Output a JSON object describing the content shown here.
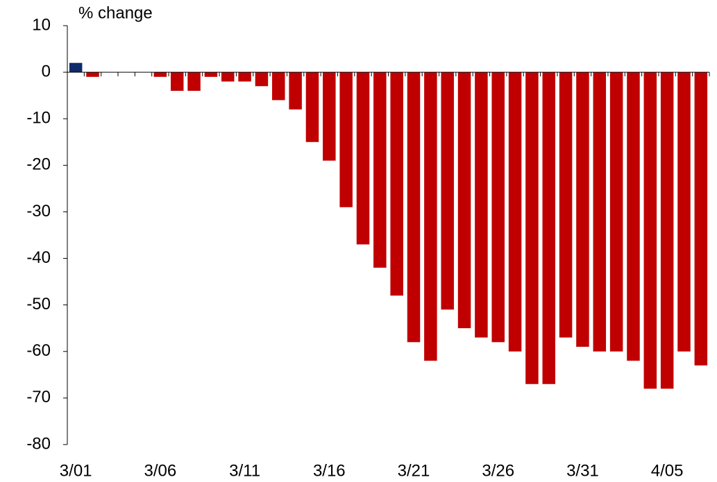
{
  "chart_data": {
    "type": "bar",
    "y_label": "% change",
    "categories": [
      "3/01",
      null,
      null,
      null,
      null,
      "3/06",
      null,
      null,
      null,
      null,
      "3/11",
      null,
      null,
      null,
      null,
      "3/16",
      null,
      null,
      null,
      null,
      "3/21",
      null,
      null,
      null,
      null,
      "3/26",
      null,
      null,
      null,
      null,
      "3/31",
      null,
      null,
      null,
      null,
      "4/05",
      null,
      null
    ],
    "values": [
      2,
      -1,
      0,
      0,
      0,
      -1,
      -4,
      -4,
      -1,
      -2,
      -2,
      -3,
      -6,
      -8,
      -15,
      -19,
      -29,
      -37,
      -42,
      -48,
      -58,
      -62,
      -51,
      -55,
      -57,
      -58,
      -60,
      -67,
      -67,
      -57,
      -59,
      -60,
      -60,
      -62,
      -68,
      -68,
      -60,
      -63
    ],
    "color": "#c00000",
    "positive_color": "#0f2a6b",
    "ylim": [
      -80,
      10
    ],
    "yticks": [
      10,
      0,
      -10,
      -20,
      -30,
      -40,
      -50,
      -60,
      -70,
      -80
    ],
    "grid": false
  }
}
